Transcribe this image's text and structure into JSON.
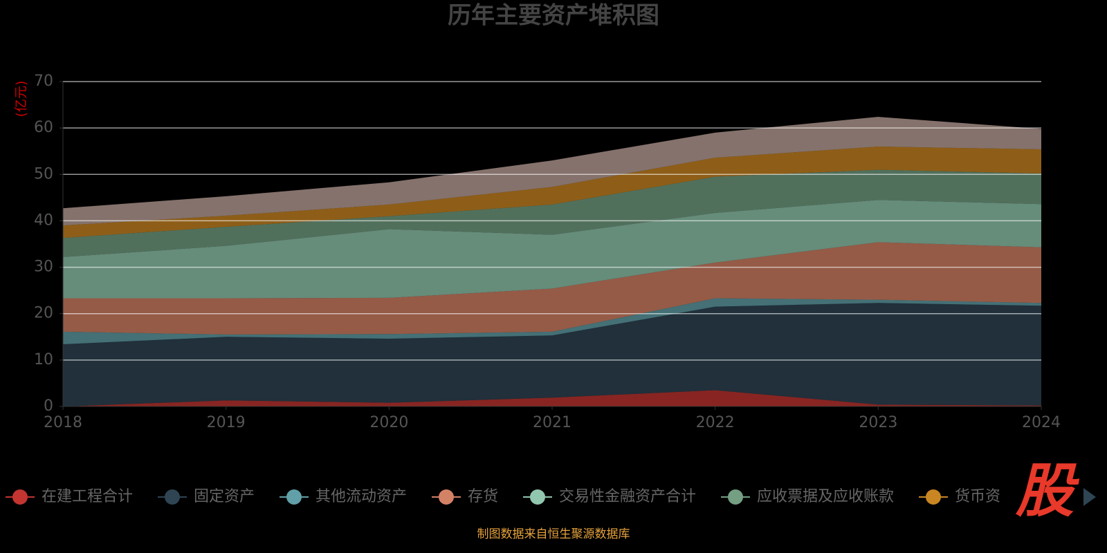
{
  "chart_data": {
    "type": "stacked_area",
    "title": "历年主要资产堆积图",
    "y_unit": "(亿元)",
    "x": [
      2018,
      2019,
      2020,
      2021,
      2022,
      2023,
      2024
    ],
    "xlim": [
      2018,
      2024
    ],
    "xticks": [
      2018,
      2019,
      2020,
      2021,
      2022,
      2023,
      2024
    ],
    "ylim": [
      0,
      70
    ],
    "yticks": [
      0,
      10,
      20,
      30,
      40,
      50,
      60,
      70
    ],
    "grid": true,
    "series": [
      {
        "name": "在建工程合计",
        "color": "#c23531",
        "values": [
          0,
          1.3,
          0.8,
          1.9,
          3.5,
          0.4,
          0.2
        ]
      },
      {
        "name": "固定资产",
        "color": "#2f4554",
        "values": [
          13.4,
          13.7,
          13.8,
          13.4,
          18.0,
          21.9,
          21.5
        ]
      },
      {
        "name": "其他流动资产",
        "color": "#61a0a8",
        "values": [
          2.7,
          0.5,
          1.0,
          0.8,
          1.8,
          0.7,
          0.6
        ]
      },
      {
        "name": "存货",
        "color": "#d48265",
        "values": [
          7.2,
          7.8,
          7.8,
          9.3,
          7.7,
          12.4,
          12.0
        ]
      },
      {
        "name": "交易性金融资产合计",
        "color": "#91c7ae",
        "values": [
          8.9,
          11.3,
          14.8,
          11.6,
          10.7,
          9.1,
          9.3
        ]
      },
      {
        "name": "应收票据及应收账款",
        "color": "#749f83",
        "values": [
          4.1,
          4.1,
          2.8,
          6.5,
          7.8,
          6.5,
          6.6
        ]
      },
      {
        "name": "货币资",
        "color": "#ca8622",
        "values": [
          2.7,
          2.4,
          2.5,
          3.8,
          4.1,
          5.0,
          5.2
        ]
      },
      {
        "color": "#bda29a",
        "values": [
          3.7,
          4.2,
          4.8,
          5.7,
          5.4,
          6.4,
          4.4
        ]
      }
    ],
    "watermark": "股",
    "source": "制图数据来自恒生聚源数据库"
  }
}
